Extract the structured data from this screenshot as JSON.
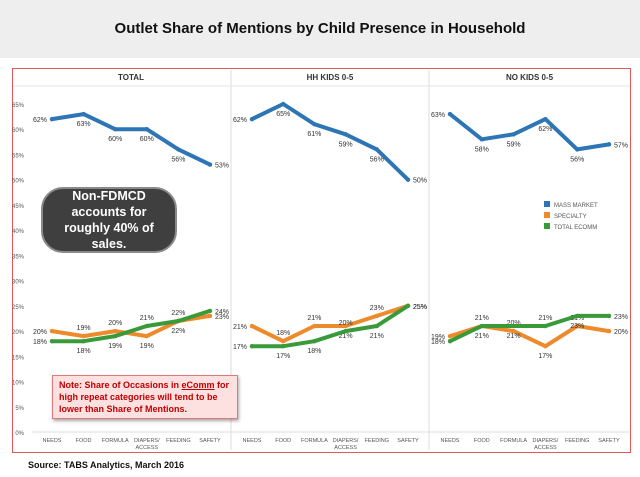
{
  "title": "Outlet Share of Mentions by Child Presence in Household",
  "source": "Source:  TABS Analytics, March 2016",
  "callout": "Non-FDMCD accounts for roughly 40% of sales.",
  "note": {
    "prefix": "Note:  Share of Occasions in ",
    "underlined": "eComm",
    "suffix": " for high repeat categories will tend to be lower than Share of Mentions."
  },
  "colors": {
    "mass_market": "#2e75b6",
    "specialty": "#ed8a2c",
    "total_ecomm": "#3a9a3a"
  },
  "chart_data": {
    "type": "line",
    "ylim": [
      0,
      65
    ],
    "yticks": [
      "0%",
      "5%",
      "10%",
      "15%",
      "20%",
      "25%",
      "30%",
      "35%",
      "40%",
      "45%",
      "50%",
      "55%",
      "60%",
      "65%"
    ],
    "categories": [
      "NEEDS",
      "FOOD",
      "FORMULA",
      "DIAPERS/\nACCESS",
      "FEEDING",
      "SAFETY"
    ],
    "legend": [
      "MASS MARKET",
      "SPECIALTY",
      "TOTAL ECOMM"
    ],
    "panels": [
      {
        "name": "TOTAL",
        "series": [
          {
            "name": "MASS MARKET",
            "values": [
              62,
              63,
              60,
              60,
              56,
              53
            ],
            "labels": [
              "62%",
              "63%",
              "60%",
              "60%",
              "56%",
              "53%"
            ]
          },
          {
            "name": "SPECIALTY",
            "values": [
              20,
              19,
              20,
              19,
              22,
              23
            ],
            "labels": [
              "20%",
              "19%",
              "20%",
              "19%",
              "22%",
              "23%"
            ]
          },
          {
            "name": "TOTAL ECOMM",
            "values": [
              18,
              18,
              19,
              21,
              22,
              24
            ],
            "labels": [
              "18%",
              "18%",
              "19%",
              "21%",
              "22%",
              "24%"
            ]
          }
        ]
      },
      {
        "name": "HH KIDS 0-5",
        "series": [
          {
            "name": "MASS MARKET",
            "values": [
              62,
              65,
              61,
              59,
              56,
              50
            ],
            "labels": [
              "62%",
              "65%",
              "61%",
              "59%",
              "56%",
              "50%"
            ]
          },
          {
            "name": "SPECIALTY",
            "values": [
              21,
              18,
              21,
              21,
              23,
              25
            ],
            "labels": [
              "21%",
              "18%",
              "21%",
              "21%",
              "23%",
              "25%"
            ]
          },
          {
            "name": "TOTAL ECOMM",
            "values": [
              17,
              17,
              18,
              20,
              21,
              25
            ],
            "labels": [
              "17%",
              "17%",
              "18%",
              "20%",
              "21%",
              "25%"
            ]
          }
        ]
      },
      {
        "name": "NO KIDS 0-5",
        "series": [
          {
            "name": "MASS MARKET",
            "values": [
              63,
              58,
              59,
              62,
              56,
              57
            ],
            "labels": [
              "63%",
              "58%",
              "59%",
              "62%",
              "56%",
              "57%"
            ]
          },
          {
            "name": "SPECIALTY",
            "values": [
              19,
              21,
              20,
              17,
              21,
              20
            ],
            "labels": [
              "19%",
              "21%",
              "20%",
              "17%",
              "21%",
              "20%"
            ]
          },
          {
            "name": "TOTAL ECOMM",
            "values": [
              18,
              21,
              21,
              21,
              23,
              23
            ],
            "labels": [
              "18%",
              "21%",
              "21%",
              "21%",
              "23%",
              "23%"
            ]
          }
        ]
      }
    ]
  }
}
